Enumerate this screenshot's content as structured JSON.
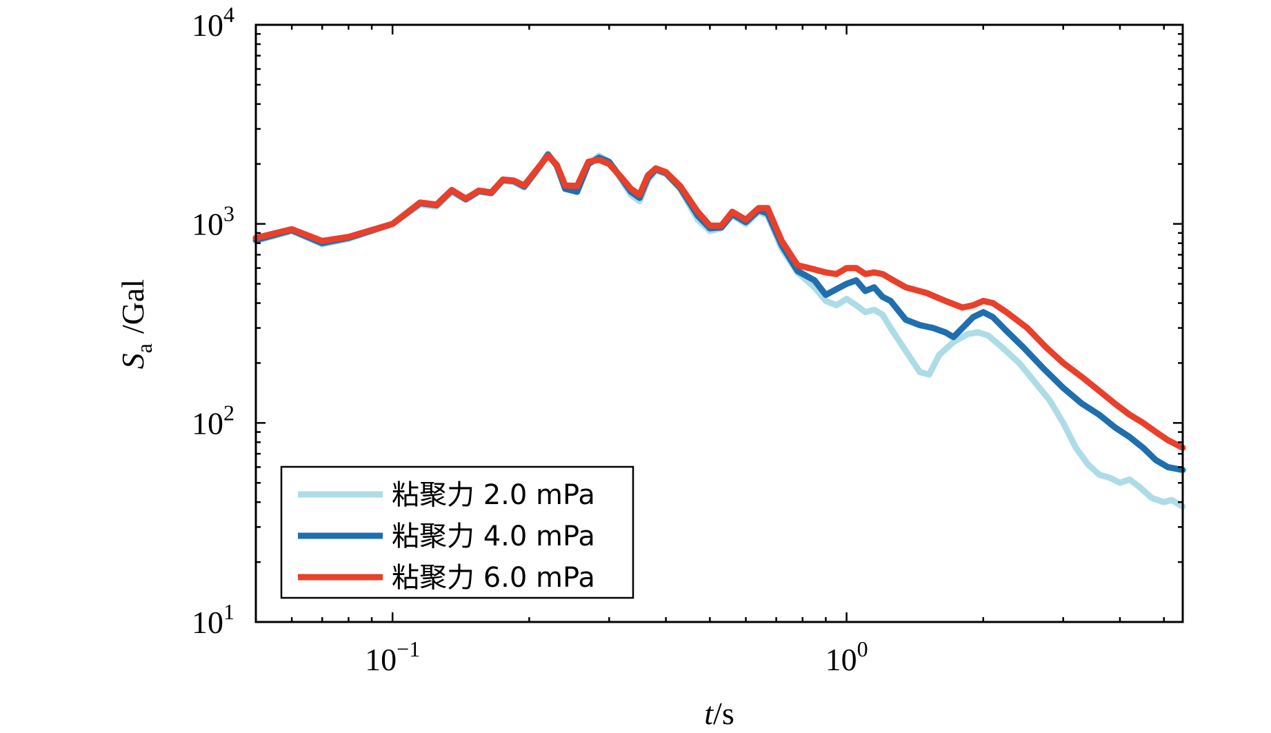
{
  "chart_data": {
    "type": "line",
    "title": "",
    "xlabel_italic": "t",
    "xlabel_rest": "/s",
    "ylabel_main": "S",
    "ylabel_sub": "a",
    "ylabel_rest": "/Gal",
    "xscale": "log",
    "yscale": "log",
    "xlim": [
      0.05,
      5.5
    ],
    "ylim": [
      10,
      10000
    ],
    "x_ticks": [
      {
        "value": 0.1,
        "base": "10",
        "exp": "−1"
      },
      {
        "value": 1,
        "base": "10",
        "exp": "0"
      }
    ],
    "y_ticks": [
      {
        "value": 10,
        "base": "10",
        "exp": "1"
      },
      {
        "value": 100,
        "base": "10",
        "exp": "2"
      },
      {
        "value": 1000,
        "base": "10",
        "exp": "3"
      },
      {
        "value": 10000,
        "base": "10",
        "exp": "4"
      }
    ],
    "legend_position": "bottom-left",
    "series": [
      {
        "name": "粘聚力 2.0 mPa",
        "color": "#aedce6",
        "points": [
          [
            0.05,
            820
          ],
          [
            0.06,
            920
          ],
          [
            0.07,
            790
          ],
          [
            0.08,
            840
          ],
          [
            0.1,
            1000
          ],
          [
            0.115,
            1250
          ],
          [
            0.125,
            1220
          ],
          [
            0.135,
            1450
          ],
          [
            0.145,
            1320
          ],
          [
            0.155,
            1450
          ],
          [
            0.165,
            1420
          ],
          [
            0.175,
            1650
          ],
          [
            0.185,
            1620
          ],
          [
            0.195,
            1520
          ],
          [
            0.21,
            1900
          ],
          [
            0.22,
            2250
          ],
          [
            0.23,
            1950
          ],
          [
            0.24,
            1550
          ],
          [
            0.255,
            1450
          ],
          [
            0.27,
            2000
          ],
          [
            0.285,
            2200
          ],
          [
            0.3,
            2050
          ],
          [
            0.32,
            1650
          ],
          [
            0.335,
            1400
          ],
          [
            0.35,
            1300
          ],
          [
            0.365,
            1650
          ],
          [
            0.38,
            1850
          ],
          [
            0.4,
            1780
          ],
          [
            0.43,
            1500
          ],
          [
            0.47,
            1050
          ],
          [
            0.5,
            920
          ],
          [
            0.53,
            950
          ],
          [
            0.56,
            1100
          ],
          [
            0.6,
            1000
          ],
          [
            0.64,
            1150
          ],
          [
            0.67,
            1100
          ],
          [
            0.72,
            750
          ],
          [
            0.78,
            570
          ],
          [
            0.85,
            480
          ],
          [
            0.9,
            410
          ],
          [
            0.95,
            390
          ],
          [
            1.0,
            420
          ],
          [
            1.05,
            390
          ],
          [
            1.1,
            360
          ],
          [
            1.15,
            370
          ],
          [
            1.2,
            350
          ],
          [
            1.25,
            300
          ],
          [
            1.35,
            230
          ],
          [
            1.45,
            180
          ],
          [
            1.52,
            175
          ],
          [
            1.6,
            220
          ],
          [
            1.72,
            255
          ],
          [
            1.85,
            280
          ],
          [
            1.95,
            285
          ],
          [
            2.05,
            275
          ],
          [
            2.2,
            240
          ],
          [
            2.4,
            200
          ],
          [
            2.6,
            160
          ],
          [
            2.8,
            130
          ],
          [
            3.0,
            100
          ],
          [
            3.2,
            75
          ],
          [
            3.4,
            62
          ],
          [
            3.6,
            55
          ],
          [
            3.8,
            53
          ],
          [
            4.0,
            50
          ],
          [
            4.2,
            52
          ],
          [
            4.4,
            48
          ],
          [
            4.7,
            42
          ],
          [
            5.0,
            40
          ],
          [
            5.2,
            41
          ],
          [
            5.5,
            38
          ]
        ]
      },
      {
        "name": "粘聚力 4.0 mPa",
        "color": "#1f6faf",
        "points": [
          [
            0.05,
            830
          ],
          [
            0.06,
            930
          ],
          [
            0.07,
            800
          ],
          [
            0.08,
            850
          ],
          [
            0.1,
            1000
          ],
          [
            0.115,
            1270
          ],
          [
            0.125,
            1240
          ],
          [
            0.135,
            1470
          ],
          [
            0.145,
            1330
          ],
          [
            0.155,
            1460
          ],
          [
            0.165,
            1430
          ],
          [
            0.175,
            1660
          ],
          [
            0.185,
            1640
          ],
          [
            0.195,
            1540
          ],
          [
            0.21,
            1920
          ],
          [
            0.22,
            2230
          ],
          [
            0.23,
            1960
          ],
          [
            0.24,
            1500
          ],
          [
            0.255,
            1450
          ],
          [
            0.27,
            2000
          ],
          [
            0.285,
            2150
          ],
          [
            0.3,
            2050
          ],
          [
            0.32,
            1680
          ],
          [
            0.335,
            1450
          ],
          [
            0.35,
            1350
          ],
          [
            0.365,
            1700
          ],
          [
            0.38,
            1880
          ],
          [
            0.4,
            1800
          ],
          [
            0.43,
            1520
          ],
          [
            0.47,
            1100
          ],
          [
            0.5,
            950
          ],
          [
            0.53,
            960
          ],
          [
            0.56,
            1120
          ],
          [
            0.6,
            1020
          ],
          [
            0.64,
            1170
          ],
          [
            0.67,
            1130
          ],
          [
            0.72,
            780
          ],
          [
            0.78,
            580
          ],
          [
            0.85,
            520
          ],
          [
            0.9,
            440
          ],
          [
            0.95,
            470
          ],
          [
            1.0,
            500
          ],
          [
            1.05,
            520
          ],
          [
            1.1,
            460
          ],
          [
            1.15,
            480
          ],
          [
            1.2,
            430
          ],
          [
            1.25,
            410
          ],
          [
            1.35,
            330
          ],
          [
            1.45,
            310
          ],
          [
            1.55,
            300
          ],
          [
            1.65,
            285
          ],
          [
            1.72,
            270
          ],
          [
            1.8,
            300
          ],
          [
            1.9,
            340
          ],
          [
            2.0,
            360
          ],
          [
            2.1,
            340
          ],
          [
            2.25,
            290
          ],
          [
            2.45,
            240
          ],
          [
            2.7,
            190
          ],
          [
            3.0,
            150
          ],
          [
            3.3,
            125
          ],
          [
            3.6,
            110
          ],
          [
            3.9,
            95
          ],
          [
            4.2,
            85
          ],
          [
            4.5,
            75
          ],
          [
            4.8,
            65
          ],
          [
            5.1,
            60
          ],
          [
            5.5,
            58
          ]
        ]
      },
      {
        "name": "粘聚力 6.0 mPa",
        "color": "#e8402b",
        "points": [
          [
            0.05,
            850
          ],
          [
            0.06,
            940
          ],
          [
            0.07,
            820
          ],
          [
            0.08,
            860
          ],
          [
            0.1,
            1000
          ],
          [
            0.115,
            1280
          ],
          [
            0.125,
            1250
          ],
          [
            0.135,
            1480
          ],
          [
            0.145,
            1340
          ],
          [
            0.155,
            1470
          ],
          [
            0.165,
            1440
          ],
          [
            0.175,
            1670
          ],
          [
            0.185,
            1650
          ],
          [
            0.195,
            1560
          ],
          [
            0.21,
            1930
          ],
          [
            0.22,
            2200
          ],
          [
            0.23,
            1980
          ],
          [
            0.24,
            1560
          ],
          [
            0.255,
            1550
          ],
          [
            0.27,
            2050
          ],
          [
            0.285,
            2100
          ],
          [
            0.3,
            2000
          ],
          [
            0.32,
            1700
          ],
          [
            0.335,
            1500
          ],
          [
            0.35,
            1400
          ],
          [
            0.365,
            1750
          ],
          [
            0.38,
            1900
          ],
          [
            0.4,
            1820
          ],
          [
            0.43,
            1550
          ],
          [
            0.47,
            1150
          ],
          [
            0.5,
            980
          ],
          [
            0.53,
            980
          ],
          [
            0.56,
            1150
          ],
          [
            0.6,
            1050
          ],
          [
            0.64,
            1200
          ],
          [
            0.67,
            1200
          ],
          [
            0.72,
            820
          ],
          [
            0.78,
            620
          ],
          [
            0.85,
            590
          ],
          [
            0.9,
            570
          ],
          [
            0.95,
            560
          ],
          [
            1.0,
            600
          ],
          [
            1.05,
            600
          ],
          [
            1.1,
            560
          ],
          [
            1.15,
            570
          ],
          [
            1.2,
            560
          ],
          [
            1.25,
            530
          ],
          [
            1.35,
            480
          ],
          [
            1.5,
            450
          ],
          [
            1.65,
            410
          ],
          [
            1.8,
            380
          ],
          [
            1.9,
            390
          ],
          [
            2.0,
            410
          ],
          [
            2.1,
            400
          ],
          [
            2.25,
            360
          ],
          [
            2.5,
            300
          ],
          [
            2.75,
            240
          ],
          [
            3.0,
            200
          ],
          [
            3.3,
            170
          ],
          [
            3.6,
            145
          ],
          [
            3.9,
            125
          ],
          [
            4.2,
            110
          ],
          [
            4.5,
            100
          ],
          [
            4.8,
            90
          ],
          [
            5.1,
            82
          ],
          [
            5.5,
            75
          ]
        ]
      }
    ]
  }
}
